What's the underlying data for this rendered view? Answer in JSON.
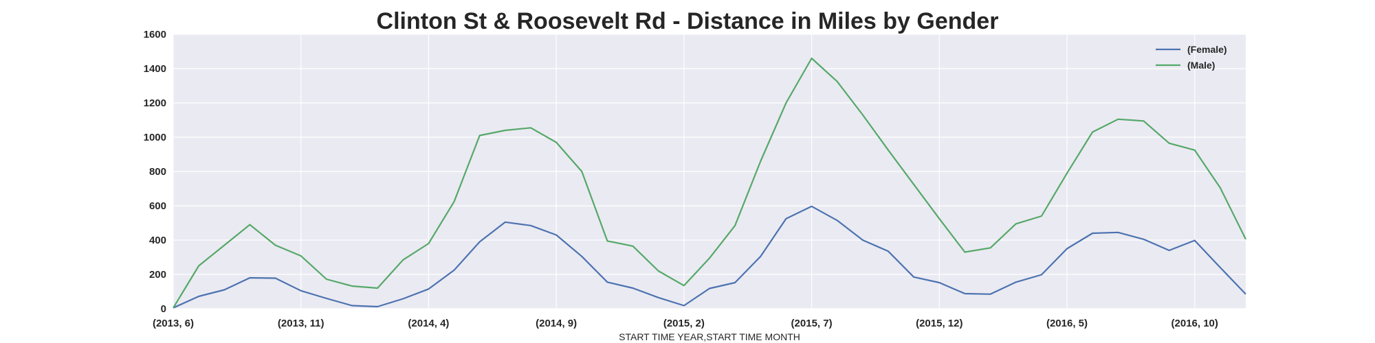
{
  "chart_data": {
    "type": "line",
    "title": "Clinton St & Roosevelt Rd - Distance in Miles by Gender",
    "xlabel": "START TIME YEAR,START TIME MONTH",
    "ylabel": "",
    "ylim": [
      0,
      1600
    ],
    "yticks": [
      0,
      200,
      400,
      600,
      800,
      1000,
      1200,
      1400,
      1600
    ],
    "grid": true,
    "legend_position": "top-right",
    "x": [
      "(2013, 6)",
      "(2013, 7)",
      "(2013, 8)",
      "(2013, 9)",
      "(2013, 10)",
      "(2013, 11)",
      "(2013, 12)",
      "(2014, 1)",
      "(2014, 2)",
      "(2014, 3)",
      "(2014, 4)",
      "(2014, 5)",
      "(2014, 6)",
      "(2014, 7)",
      "(2014, 8)",
      "(2014, 9)",
      "(2014, 10)",
      "(2014, 11)",
      "(2014, 12)",
      "(2015, 1)",
      "(2015, 2)",
      "(2015, 3)",
      "(2015, 4)",
      "(2015, 5)",
      "(2015, 6)",
      "(2015, 7)",
      "(2015, 8)",
      "(2015, 9)",
      "(2015, 10)",
      "(2015, 11)",
      "(2015, 12)",
      "(2016, 1)",
      "(2016, 2)",
      "(2016, 3)",
      "(2016, 4)",
      "(2016, 5)",
      "(2016, 6)",
      "(2016, 7)",
      "(2016, 8)",
      "(2016, 9)",
      "(2016, 10)",
      "(2016, 11)",
      "(2016, 12)"
    ],
    "xtick_labels": [
      "(2013, 6)",
      "(2013, 11)",
      "(2014, 4)",
      "(2014, 9)",
      "(2015, 2)",
      "(2015, 7)",
      "(2015, 12)",
      "(2016, 5)",
      "(2016, 10)"
    ],
    "series": [
      {
        "name": "(Female)",
        "color": "#4c72b0",
        "values": [
          5,
          72,
          110,
          180,
          178,
          105,
          60,
          18,
          12,
          58,
          115,
          225,
          390,
          505,
          485,
          430,
          305,
          155,
          120,
          65,
          18,
          118,
          152,
          305,
          525,
          597,
          515,
          400,
          335,
          185,
          152,
          88,
          85,
          155,
          198,
          350,
          440,
          445,
          405,
          340,
          398,
          240,
          85
        ]
      },
      {
        "name": "(Male)",
        "color": "#55a868",
        "values": [
          5,
          250,
          370,
          490,
          370,
          308,
          172,
          132,
          120,
          285,
          380,
          625,
          1010,
          1040,
          1055,
          970,
          800,
          395,
          365,
          220,
          135,
          295,
          485,
          860,
          1200,
          1460,
          1325,
          1130,
          925,
          725,
          525,
          330,
          355,
          495,
          540,
          790,
          1030,
          1105,
          1095,
          965,
          925,
          705,
          405
        ]
      }
    ]
  }
}
